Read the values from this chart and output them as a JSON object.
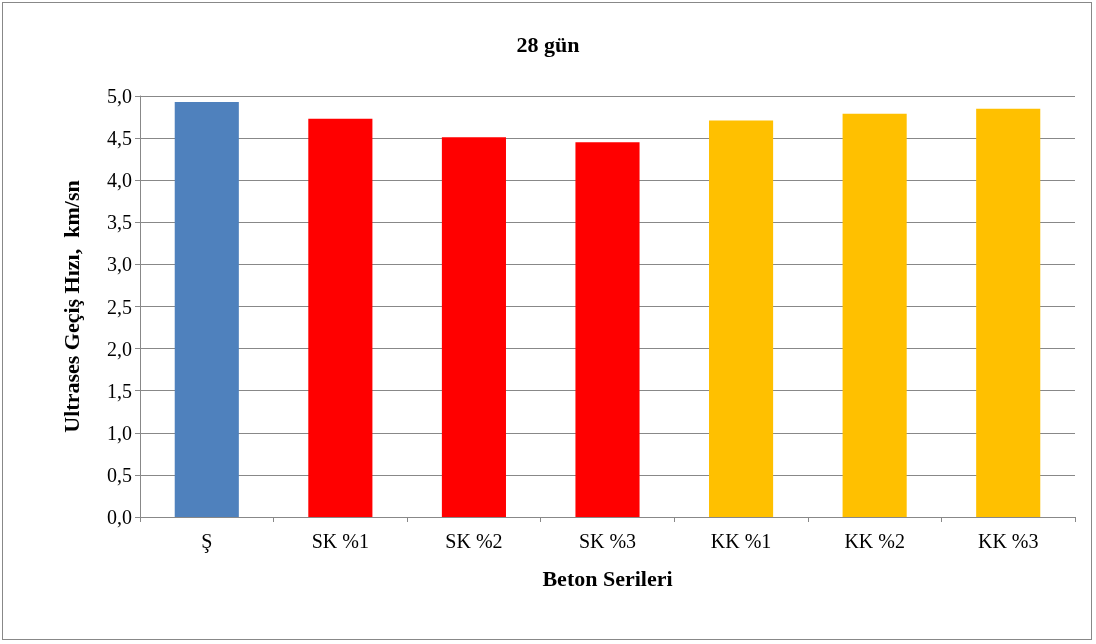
{
  "chart_data": {
    "type": "bar",
    "title": "28 gün",
    "xlabel": "Beton Serileri",
    "ylabel": "Ultrases Geçiş Hızı,  km/sn",
    "categories": [
      "Ş",
      "SK %1",
      "SK %2",
      "SK %3",
      "KK %1",
      "KK %2",
      "KK %3"
    ],
    "values": [
      4.93,
      4.73,
      4.51,
      4.45,
      4.71,
      4.79,
      4.85
    ],
    "colors": [
      "#4f81bd",
      "#ff0000",
      "#ff0000",
      "#ff0000",
      "#ffc000",
      "#ffc000",
      "#ffc000"
    ],
    "ylim": [
      0,
      5
    ],
    "yticks": [
      {
        "value": 0,
        "label": "0,0"
      },
      {
        "value": 0.5,
        "label": "0,5"
      },
      {
        "value": 1,
        "label": "1,0"
      },
      {
        "value": 1.5,
        "label": "1,5"
      },
      {
        "value": 2,
        "label": "2,0"
      },
      {
        "value": 2.5,
        "label": "2,5"
      },
      {
        "value": 3,
        "label": "3,0"
      },
      {
        "value": 3.5,
        "label": "3,5"
      },
      {
        "value": 4,
        "label": "4,0"
      },
      {
        "value": 4.5,
        "label": "4,5"
      },
      {
        "value": 5,
        "label": "5,0"
      }
    ],
    "grid": "y"
  }
}
